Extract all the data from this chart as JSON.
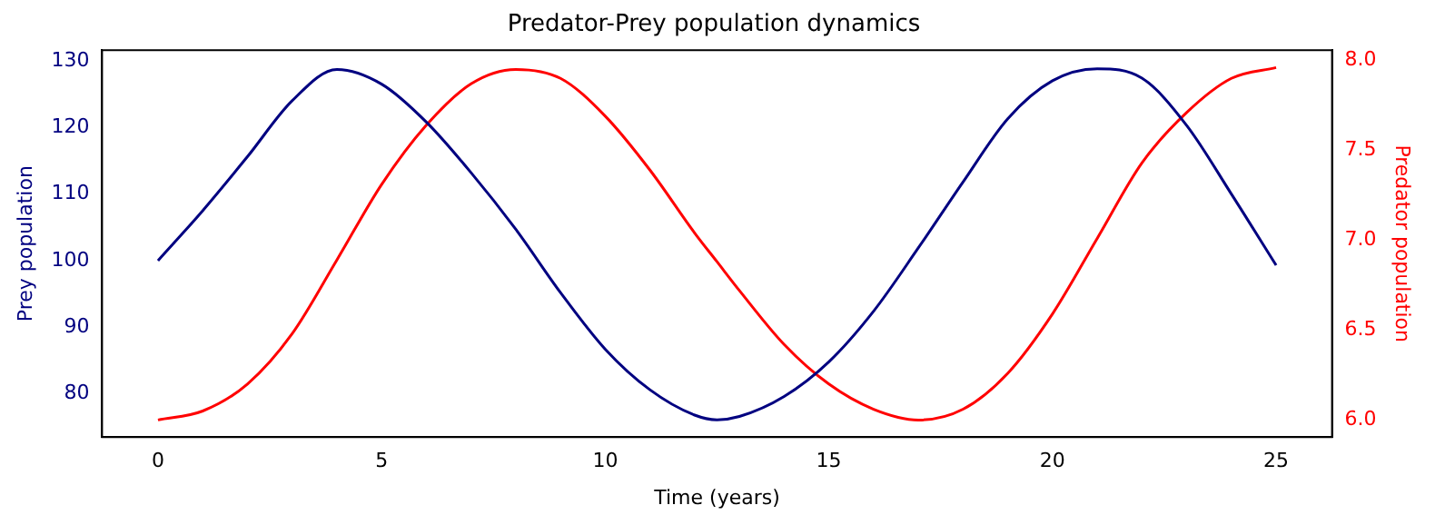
{
  "chart_data": {
    "type": "line",
    "title": "Predator-Prey population dynamics",
    "xlabel": "Time (years)",
    "ylabel": "Prey population",
    "y2label": "Predator population",
    "x": [
      0,
      1,
      2,
      3,
      4,
      5,
      6,
      7,
      8,
      9,
      10,
      11,
      12,
      12.5,
      13,
      14,
      15,
      16,
      17,
      18,
      19,
      20,
      21,
      22,
      23,
      24,
      25
    ],
    "series": [
      {
        "color": "#000080",
        "values": [
          100,
          107.5,
          115.6,
          124,
          128.7,
          126.5,
          120.8,
          113.2,
          104.7,
          95.2,
          86.7,
          80.6,
          76.8,
          76.1,
          76.6,
          79.6,
          84.8,
          92.4,
          101.9,
          111.8,
          121.3,
          127,
          128.8,
          127.4,
          120.3,
          110,
          99.3
        ]
      },
      {
        "color": "#ff0000",
        "axis": "y2",
        "values": [
          6.0,
          6.05,
          6.2,
          6.48,
          6.89,
          7.31,
          7.64,
          7.87,
          7.95,
          7.9,
          7.69,
          7.39,
          7.04,
          6.88,
          6.72,
          6.42,
          6.2,
          6.06,
          6.0,
          6.06,
          6.26,
          6.59,
          7.01,
          7.43,
          7.71,
          7.9,
          7.96
        ]
      }
    ],
    "xlim": [
      -1.25,
      26.25
    ],
    "xticks": [
      0,
      5,
      10,
      15,
      20,
      25
    ],
    "ylim": [
      73.5,
      131.6
    ],
    "yticks": [
      80,
      90,
      100,
      110,
      120,
      130
    ],
    "y2lim": [
      5.905,
      8.057
    ],
    "y2ticks": [
      {
        "value": 6,
        "label": "6.0"
      },
      {
        "value": 6.5,
        "label": "6.5"
      },
      {
        "value": 7,
        "label": "7.0"
      },
      {
        "value": 7.5,
        "label": "7.5"
      },
      {
        "value": 8,
        "label": "8.0"
      }
    ],
    "grid": false,
    "marker": "none",
    "line_style": "solid"
  }
}
